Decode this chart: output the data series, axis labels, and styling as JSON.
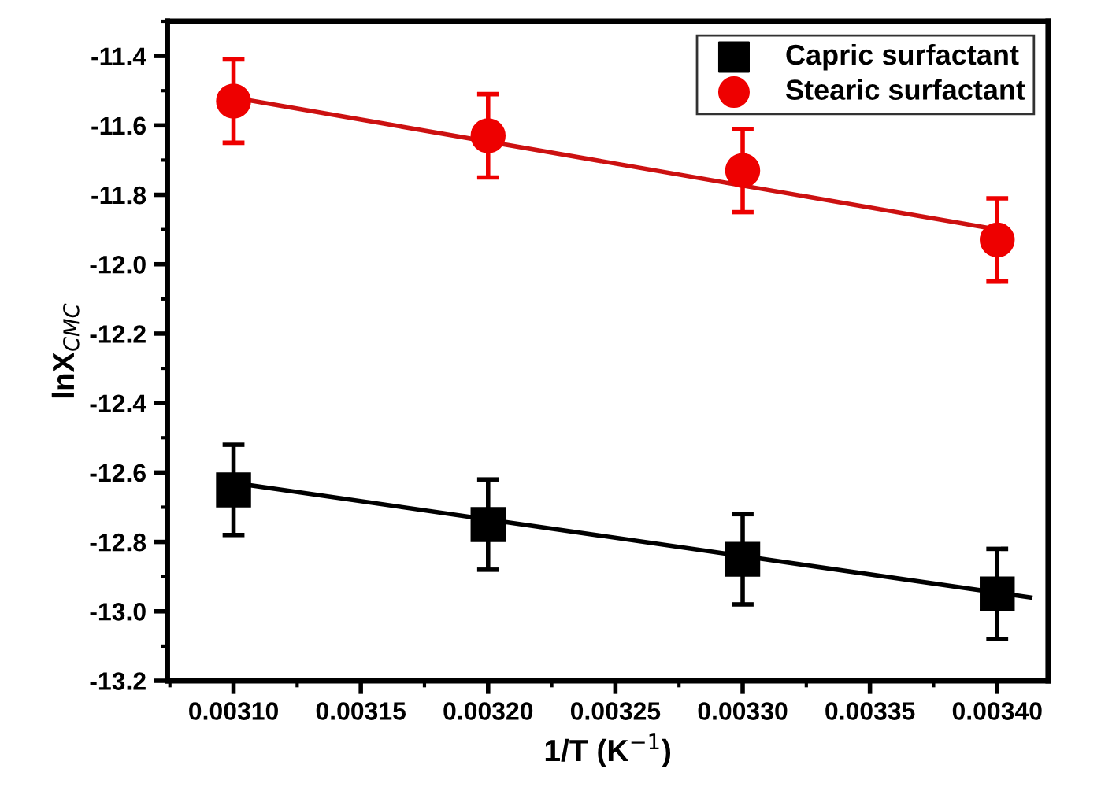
{
  "chart_data": {
    "type": "scatter",
    "xlabel": "1/T (K$^{−1}$)",
    "ylabel": "lnX$_{CMC}$",
    "xlim": [
      0.003074,
      0.00342
    ],
    "ylim": [
      -13.2,
      -11.3
    ],
    "xticks": [
      {
        "value": 0.0031,
        "label": "0.00310"
      },
      {
        "value": 0.00315,
        "label": "0.00315"
      },
      {
        "value": 0.0032,
        "label": "0.00320"
      },
      {
        "value": 0.00325,
        "label": "0.00325"
      },
      {
        "value": 0.0033,
        "label": "0.00330"
      },
      {
        "value": 0.00335,
        "label": "0.00335"
      },
      {
        "value": 0.0034,
        "label": "0.00340"
      }
    ],
    "yticks": [
      {
        "value": -13.2,
        "label": "-13.2"
      },
      {
        "value": -13.0,
        "label": "-13.0"
      },
      {
        "value": -12.8,
        "label": "-12.8"
      },
      {
        "value": -12.6,
        "label": "-12.6"
      },
      {
        "value": -12.4,
        "label": "-12.4"
      },
      {
        "value": -12.2,
        "label": "-12.2"
      },
      {
        "value": -12.0,
        "label": "-12.0"
      },
      {
        "value": -11.8,
        "label": "-11.8"
      },
      {
        "value": -11.6,
        "label": "-11.6"
      },
      {
        "value": -11.4,
        "label": "-11.4"
      }
    ],
    "grid": false,
    "legend": "top right",
    "series": [
      {
        "name": "Capric surfactant",
        "color": "#000000",
        "marker": "square",
        "x": [
          0.0031,
          0.0032,
          0.0033,
          0.0034
        ],
        "values": [
          -12.65,
          -12.75,
          -12.85,
          -12.95
        ],
        "errors": [
          0.13,
          0.13,
          0.13,
          0.13
        ]
      },
      {
        "name": "Stearic surfactant",
        "color": "#ee0000",
        "marker": "circle",
        "x": [
          0.0031,
          0.0032,
          0.0033,
          0.0034
        ],
        "values": [
          -11.53,
          -11.63,
          -11.73,
          -11.93
        ],
        "errors": [
          0.12,
          0.12,
          0.12,
          0.12
        ]
      },
      {
        "type": "line",
        "color": "#cc1111",
        "x": [
          0.0031,
          0.0034
        ],
        "values": [
          -11.52,
          -11.9
        ]
      },
      {
        "type": "line",
        "color": "#000000",
        "x": [
          0.0031,
          0.003413
        ],
        "values": [
          -12.63,
          -12.96
        ]
      }
    ]
  }
}
